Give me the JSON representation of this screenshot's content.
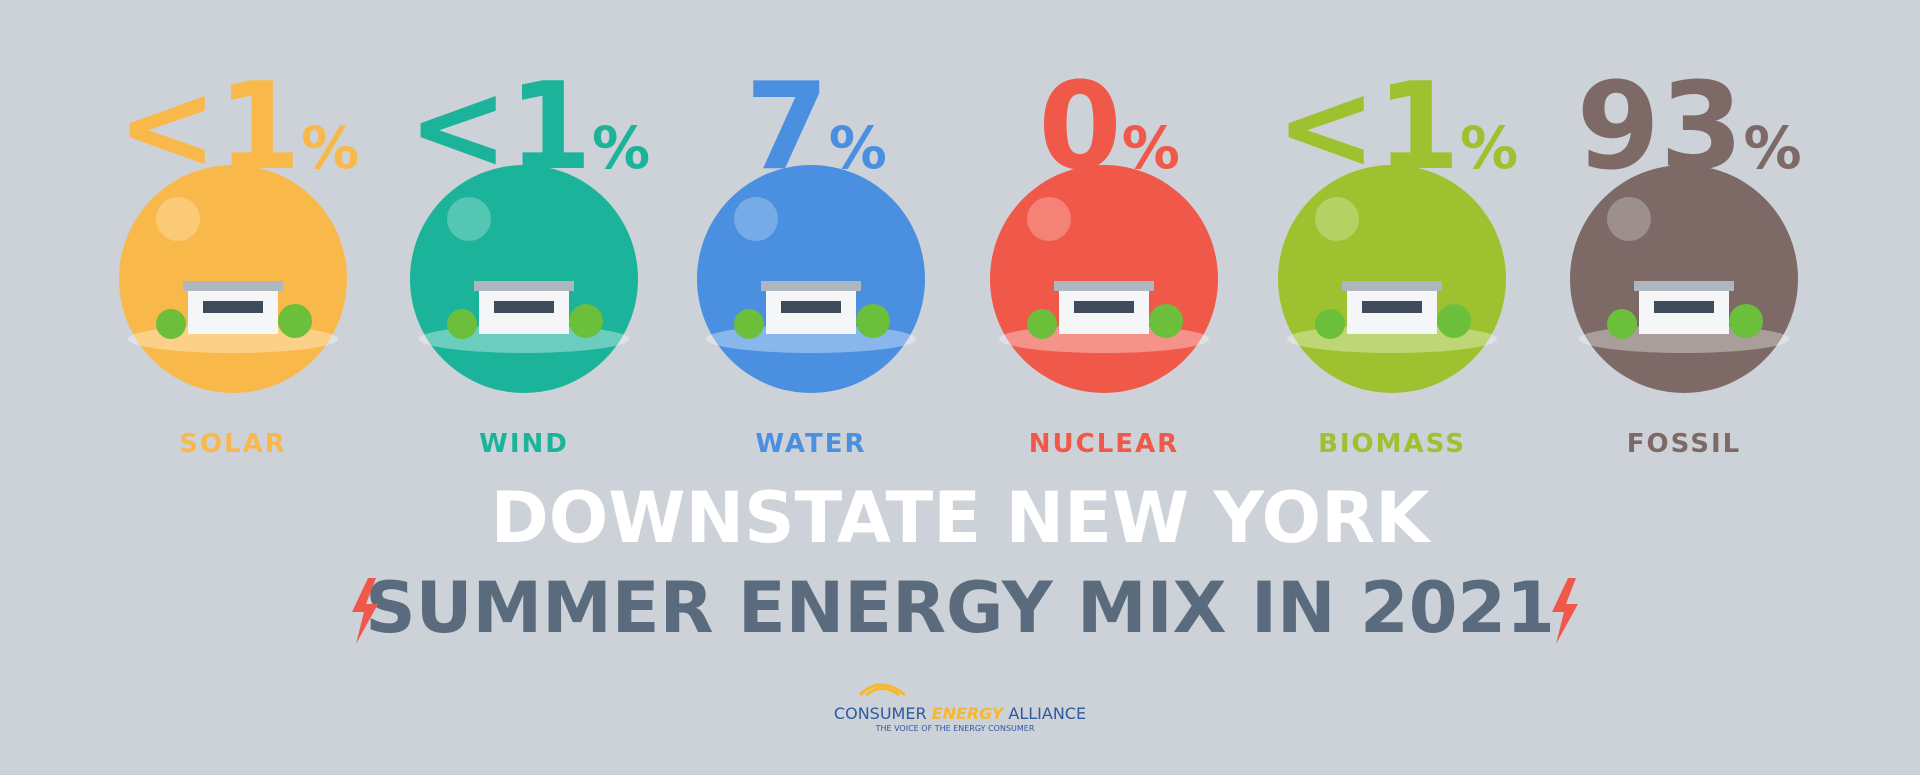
{
  "header": {
    "title_line1": "DOWNSTATE NEW YORK",
    "title_line2": "SUMMER ENERGY MIX IN 2021"
  },
  "items": [
    {
      "value": "<1",
      "unit": "%",
      "label": "SOLAR",
      "color": "#f9b94a"
    },
    {
      "value": "<1",
      "unit": "%",
      "label": "WIND",
      "color": "#1bb39a"
    },
    {
      "value": 7,
      "unit": "%",
      "label": "WATER",
      "color": "#4a8fe0"
    },
    {
      "value": 0,
      "unit": "%",
      "label": "NUCLEAR",
      "color": "#f0584a"
    },
    {
      "value": "<1",
      "unit": "%",
      "label": "BIOMASS",
      "color": "#9dc12f"
    },
    {
      "value": 93,
      "unit": "%",
      "label": "FOSSIL",
      "color": "#7d6a66"
    }
  ],
  "logo": {
    "word1": "CONSUMER",
    "word2": "ENERGY",
    "word3": "ALLIANCE",
    "tagline": "THE VOICE OF THE ENERGY CONSUMER"
  }
}
